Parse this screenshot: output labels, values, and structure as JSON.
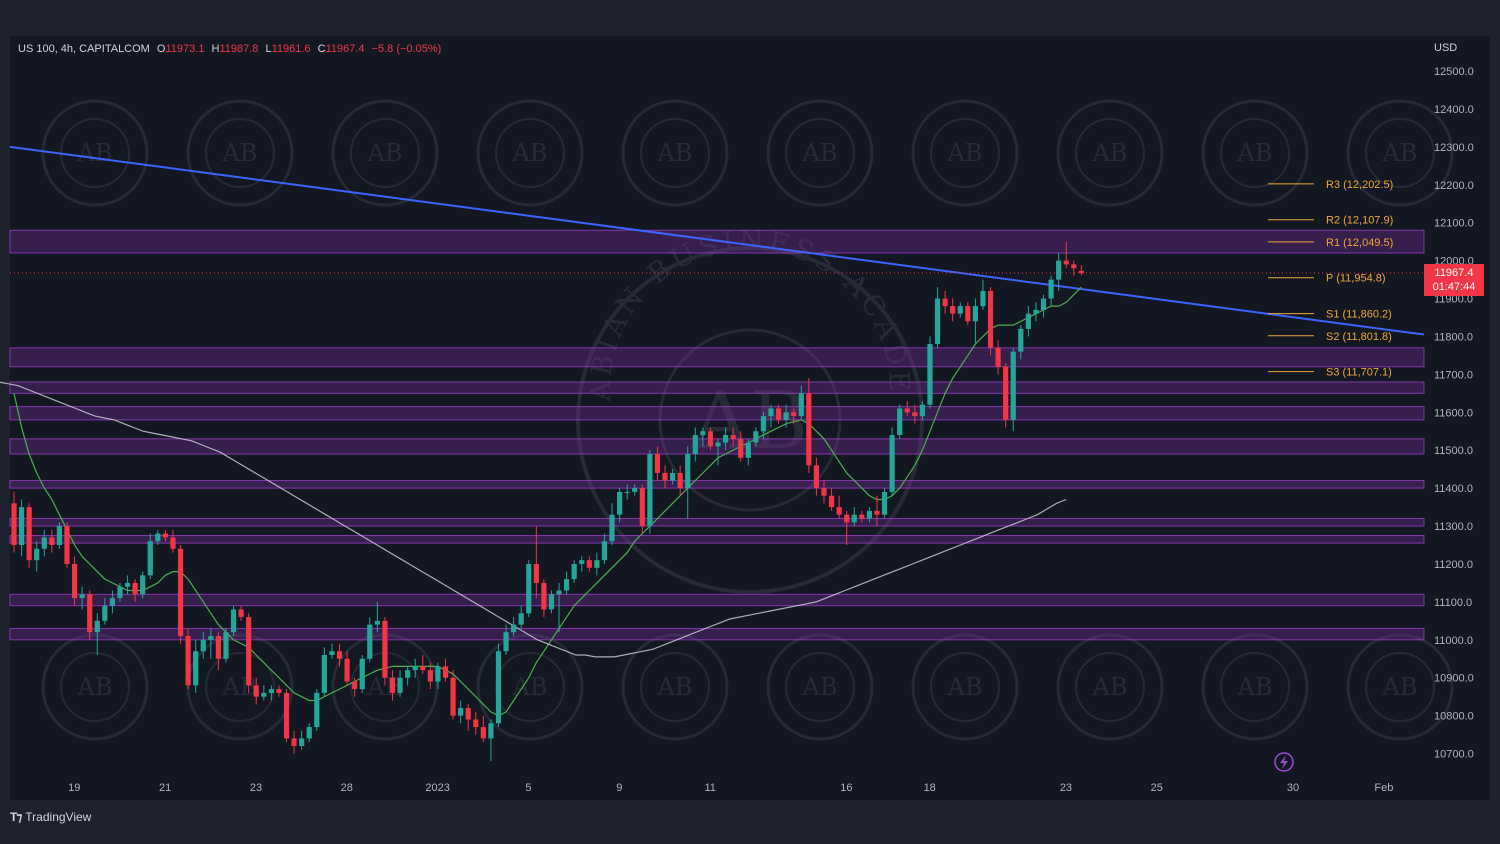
{
  "header": {
    "symbol": "US 100, 4h, CAPITALCOM",
    "open_label": "O",
    "open": "11973.1",
    "high_label": "H",
    "high": "11987.8",
    "low_label": "L",
    "low": "11961.6",
    "close_label": "C",
    "close": "11967.4",
    "change": "−5.8 (−0.05%)"
  },
  "currency": "USD",
  "last_price": {
    "value": "11967.4",
    "countdown": "01:47:44"
  },
  "footer": {
    "brand": "TradingView"
  },
  "colors": {
    "bull": "#26a69a",
    "bear": "#f23645",
    "pivot": "#f0a73a",
    "trendline": "#3c64ff",
    "zone": "#7b2d9e",
    "ma_fast": "#4caf50",
    "ma_slow": "#c8c8d0"
  },
  "chart_data": {
    "type": "candlestick",
    "ylim": [
      10650,
      12550
    ],
    "y_ticks": [
      10700,
      10800,
      10900,
      11000,
      11100,
      11200,
      11300,
      11400,
      11500,
      11600,
      11700,
      11800,
      11900,
      12000,
      12100,
      12200,
      12300,
      12400,
      12500
    ],
    "y_tick_labels": [
      "10700.0",
      "10800.0",
      "10900.0",
      "11000.0",
      "11100.0",
      "11200.0",
      "11300.0",
      "11400.0",
      "11500.0",
      "11600.0",
      "11700.0",
      "11800.0",
      "11900.0",
      "12000.0",
      "12100.0",
      "12200.0",
      "12300.0",
      "12400.0",
      "12500.0"
    ],
    "x_ticks": [
      {
        "label": "19",
        "i": 4
      },
      {
        "label": "21",
        "i": 16
      },
      {
        "label": "23",
        "i": 28
      },
      {
        "label": "28",
        "i": 40
      },
      {
        "label": "2023",
        "i": 52
      },
      {
        "label": "5",
        "i": 64
      },
      {
        "label": "9",
        "i": 76
      },
      {
        "label": "11",
        "i": 88
      },
      {
        "label": "16",
        "i": 106
      },
      {
        "label": "18",
        "i": 117
      },
      {
        "label": "23",
        "i": 135
      },
      {
        "label": "25",
        "i": 147
      },
      {
        "label": "30",
        "i": 165
      },
      {
        "label": "Feb",
        "i": 177
      }
    ],
    "candles": [
      [
        11360,
        11390,
        11230,
        11250
      ],
      [
        11250,
        11370,
        11220,
        11350
      ],
      [
        11350,
        11360,
        11190,
        11210
      ],
      [
        11210,
        11260,
        11180,
        11240
      ],
      [
        11240,
        11290,
        11220,
        11270
      ],
      [
        11270,
        11290,
        11230,
        11250
      ],
      [
        11250,
        11310,
        11240,
        11300
      ],
      [
        11300,
        11310,
        11190,
        11200
      ],
      [
        11200,
        11220,
        11090,
        11110
      ],
      [
        11110,
        11140,
        11080,
        11120
      ],
      [
        11120,
        11130,
        11000,
        11020
      ],
      [
        11020,
        11070,
        10960,
        11050
      ],
      [
        11050,
        11110,
        11040,
        11090
      ],
      [
        11090,
        11130,
        11070,
        11110
      ],
      [
        11110,
        11150,
        11100,
        11140
      ],
      [
        11140,
        11170,
        11120,
        11150
      ],
      [
        11150,
        11160,
        11100,
        11120
      ],
      [
        11120,
        11180,
        11110,
        11170
      ],
      [
        11170,
        11280,
        11160,
        11260
      ],
      [
        11260,
        11290,
        11250,
        11280
      ],
      [
        11280,
        11290,
        11260,
        11270
      ],
      [
        11270,
        11290,
        11230,
        11240
      ],
      [
        11240,
        11250,
        10990,
        11010
      ],
      [
        11010,
        11030,
        10870,
        10880
      ],
      [
        10880,
        11000,
        10860,
        10970
      ],
      [
        10970,
        11020,
        10950,
        11000
      ],
      [
        11000,
        11030,
        10950,
        11010
      ],
      [
        11010,
        11020,
        10920,
        10950
      ],
      [
        10950,
        11030,
        10940,
        11020
      ],
      [
        11020,
        11090,
        11010,
        11080
      ],
      [
        11080,
        11090,
        11050,
        11060
      ],
      [
        11060,
        11070,
        10860,
        10880
      ],
      [
        10880,
        10900,
        10830,
        10850
      ],
      [
        10850,
        10880,
        10840,
        10860
      ],
      [
        10860,
        10880,
        10840,
        10870
      ],
      [
        10870,
        10880,
        10850,
        10860
      ],
      [
        10860,
        10870,
        10730,
        10740
      ],
      [
        10740,
        10760,
        10700,
        10720
      ],
      [
        10720,
        10760,
        10710,
        10740
      ],
      [
        10740,
        10780,
        10730,
        10770
      ],
      [
        10770,
        10870,
        10760,
        10860
      ],
      [
        10860,
        10980,
        10850,
        10960
      ],
      [
        10960,
        10990,
        10950,
        10970
      ],
      [
        10970,
        10990,
        10930,
        10950
      ],
      [
        10950,
        10970,
        10880,
        10890
      ],
      [
        10890,
        10900,
        10850,
        10870
      ],
      [
        10870,
        10960,
        10860,
        10950
      ],
      [
        10950,
        11060,
        10940,
        11040
      ],
      [
        11040,
        11100,
        11020,
        11050
      ],
      [
        11050,
        11060,
        10880,
        10900
      ],
      [
        10900,
        10920,
        10840,
        10860
      ],
      [
        10860,
        10920,
        10850,
        10900
      ],
      [
        10900,
        10930,
        10880,
        10920
      ],
      [
        10920,
        10950,
        10900,
        10930
      ],
      [
        10930,
        10960,
        10910,
        10920
      ],
      [
        10920,
        10940,
        10870,
        10890
      ],
      [
        10890,
        10940,
        10870,
        10930
      ],
      [
        10930,
        10950,
        10890,
        10900
      ],
      [
        10900,
        10920,
        10790,
        10800
      ],
      [
        10800,
        10840,
        10780,
        10820
      ],
      [
        10820,
        10830,
        10760,
        10790
      ],
      [
        10790,
        10810,
        10750,
        10770
      ],
      [
        10770,
        10800,
        10730,
        10740
      ],
      [
        10740,
        10790,
        10680,
        10780
      ],
      [
        10780,
        10990,
        10770,
        10970
      ],
      [
        10970,
        11040,
        10960,
        11020
      ],
      [
        11020,
        11060,
        11010,
        11040
      ],
      [
        11040,
        11090,
        11030,
        11070
      ],
      [
        11070,
        11210,
        11060,
        11200
      ],
      [
        11200,
        11300,
        11110,
        11150
      ],
      [
        11150,
        11160,
        11060,
        11080
      ],
      [
        11080,
        11130,
        11070,
        11120
      ],
      [
        11120,
        11150,
        11020,
        11130
      ],
      [
        11130,
        11180,
        11120,
        11160
      ],
      [
        11160,
        11210,
        11150,
        11200
      ],
      [
        11200,
        11220,
        11180,
        11210
      ],
      [
        11210,
        11220,
        11180,
        11190
      ],
      [
        11190,
        11230,
        11170,
        11210
      ],
      [
        11210,
        11280,
        11200,
        11260
      ],
      [
        11260,
        11360,
        11250,
        11330
      ],
      [
        11330,
        11400,
        11310,
        11390
      ],
      [
        11390,
        11410,
        11370,
        11390
      ],
      [
        11390,
        11410,
        11380,
        11400
      ],
      [
        11400,
        11410,
        11280,
        11300
      ],
      [
        11300,
        11500,
        11280,
        11490
      ],
      [
        11490,
        11510,
        11420,
        11440
      ],
      [
        11440,
        11460,
        11400,
        11420
      ],
      [
        11420,
        11450,
        11410,
        11440
      ],
      [
        11440,
        11460,
        11380,
        11400
      ],
      [
        11400,
        11510,
        11320,
        11490
      ],
      [
        11490,
        11560,
        11470,
        11540
      ],
      [
        11540,
        11560,
        11510,
        11550
      ],
      [
        11550,
        11560,
        11500,
        11510
      ],
      [
        11510,
        11530,
        11460,
        11520
      ],
      [
        11520,
        11560,
        11500,
        11540
      ],
      [
        11540,
        11560,
        11510,
        11530
      ],
      [
        11530,
        11550,
        11470,
        11480
      ],
      [
        11480,
        11530,
        11460,
        11520
      ],
      [
        11520,
        11560,
        11510,
        11550
      ],
      [
        11550,
        11600,
        11530,
        11590
      ],
      [
        11590,
        11620,
        11560,
        11610
      ],
      [
        11610,
        11620,
        11570,
        11580
      ],
      [
        11580,
        11620,
        11560,
        11600
      ],
      [
        11600,
        11610,
        11570,
        11590
      ],
      [
        11590,
        11670,
        11580,
        11650
      ],
      [
        11650,
        11690,
        11440,
        11460
      ],
      [
        11460,
        11480,
        11380,
        11400
      ],
      [
        11400,
        11420,
        11360,
        11380
      ],
      [
        11380,
        11400,
        11340,
        11350
      ],
      [
        11350,
        11380,
        11320,
        11330
      ],
      [
        11330,
        11340,
        11250,
        11310
      ],
      [
        11310,
        11350,
        11300,
        11330
      ],
      [
        11330,
        11340,
        11310,
        11320
      ],
      [
        11320,
        11350,
        11310,
        11340
      ],
      [
        11340,
        11380,
        11300,
        11330
      ],
      [
        11330,
        11400,
        11320,
        11390
      ],
      [
        11390,
        11560,
        11380,
        11540
      ],
      [
        11540,
        11620,
        11530,
        11610
      ],
      [
        11610,
        11630,
        11590,
        11600
      ],
      [
        11600,
        11620,
        11570,
        11590
      ],
      [
        11590,
        11630,
        11580,
        11620
      ],
      [
        11620,
        11800,
        11610,
        11780
      ],
      [
        11780,
        11930,
        11770,
        11900
      ],
      [
        11900,
        11920,
        11860,
        11880
      ],
      [
        11880,
        11900,
        11840,
        11860
      ],
      [
        11860,
        11890,
        11850,
        11880
      ],
      [
        11880,
        11890,
        11830,
        11840
      ],
      [
        11840,
        11900,
        11780,
        11880
      ],
      [
        11880,
        11950,
        11870,
        11920
      ],
      [
        11920,
        11930,
        11750,
        11770
      ],
      [
        11770,
        11790,
        11700,
        11720
      ],
      [
        11720,
        11730,
        11560,
        11580
      ],
      [
        11580,
        11770,
        11550,
        11760
      ],
      [
        11760,
        11830,
        11740,
        11820
      ],
      [
        11820,
        11880,
        11800,
        11860
      ],
      [
        11860,
        11890,
        11840,
        11870
      ],
      [
        11870,
        11910,
        11850,
        11900
      ],
      [
        11900,
        11960,
        11880,
        11950
      ],
      [
        11950,
        12020,
        11920,
        12000
      ],
      [
        12000,
        12050,
        11980,
        11990
      ],
      [
        11990,
        12000,
        11960,
        11980
      ],
      [
        11973.1,
        11987.8,
        11961.6,
        11967.4
      ]
    ],
    "ma_fast": [
      11650,
      11560,
      11490,
      11440,
      11400,
      11370,
      11330,
      11290,
      11250,
      11220,
      11200,
      11180,
      11160,
      11150,
      11140,
      11130,
      11130,
      11130,
      11140,
      11150,
      11170,
      11180,
      11180,
      11160,
      11130,
      11100,
      11070,
      11040,
      11020,
      11000,
      10990,
      10980,
      10960,
      10940,
      10920,
      10900,
      10880,
      10860,
      10850,
      10840,
      10840,
      10850,
      10860,
      10870,
      10880,
      10890,
      10900,
      10910,
      10920,
      10925,
      10930,
      10930,
      10930,
      10930,
      10930,
      10930,
      10930,
      10920,
      10910,
      10890,
      10870,
      10850,
      10830,
      10810,
      10800,
      10810,
      10840,
      10870,
      10900,
      10940,
      10970,
      11000,
      11030,
      11060,
      11090,
      11110,
      11130,
      11150,
      11170,
      11190,
      11210,
      11230,
      11260,
      11280,
      11300,
      11320,
      11340,
      11360,
      11380,
      11400,
      11420,
      11440,
      11460,
      11480,
      11490,
      11500,
      11510,
      11520,
      11530,
      11540,
      11550,
      11560,
      11570,
      11575,
      11580,
      11570,
      11550,
      11530,
      11500,
      11470,
      11440,
      11420,
      11400,
      11380,
      11370,
      11370,
      11380,
      11400,
      11430,
      11460,
      11500,
      11550,
      11600,
      11650,
      11690,
      11720,
      11750,
      11780,
      11800,
      11820,
      11830,
      11830,
      11830,
      11840,
      11850,
      11860,
      11870,
      11880,
      11880,
      11890,
      11910,
      11930
    ],
    "ma_slow": [
      11680,
      11675,
      11670,
      11660,
      11650,
      11640,
      11630,
      11620,
      11610,
      11600,
      11590,
      11585,
      11580,
      11570,
      11560,
      11550,
      11545,
      11540,
      11535,
      11530,
      11525,
      11515,
      11505,
      11495,
      11480,
      11465,
      11450,
      11435,
      11420,
      11405,
      11390,
      11375,
      11360,
      11345,
      11330,
      11315,
      11300,
      11285,
      11270,
      11255,
      11240,
      11225,
      11210,
      11195,
      11180,
      11165,
      11150,
      11135,
      11120,
      11105,
      11090,
      11075,
      11060,
      11045,
      11030,
      11015,
      11000,
      10990,
      10980,
      10970,
      10960,
      10960,
      10955,
      10955,
      10955,
      10960,
      10965,
      10970,
      10975,
      10985,
      10995,
      11005,
      11015,
      11025,
      11035,
      11045,
      11055,
      11060,
      11065,
      11070,
      11075,
      11080,
      11085,
      11090,
      11095,
      11100,
      11110,
      11120,
      11130,
      11140,
      11150,
      11160,
      11170,
      11180,
      11190,
      11200,
      11210,
      11220,
      11230,
      11240,
      11250,
      11260,
      11270,
      11280,
      11290,
      11300,
      11310,
      11320,
      11330,
      11345,
      11360,
      11370
    ],
    "trendline": {
      "start": 12300,
      "end": 11805
    },
    "zones": [
      [
        12020,
        12080
      ],
      [
        11770,
        11720
      ],
      [
        11680,
        11650
      ],
      [
        11615,
        11580
      ],
      [
        11530,
        11490
      ],
      [
        11420,
        11400
      ],
      [
        11320,
        11300
      ],
      [
        11275,
        11255
      ],
      [
        11120,
        11090
      ],
      [
        11030,
        11000
      ]
    ],
    "pivots": [
      {
        "label": "R3 (12,202.5)",
        "value": 12202.5
      },
      {
        "label": "R2 (12,107.9)",
        "value": 12107.9
      },
      {
        "label": "R1 (12,049.5)",
        "value": 12049.5
      },
      {
        "label": "P (11,954.8)",
        "value": 11954.8
      },
      {
        "label": "S1 (11,860.2)",
        "value": 11860.2
      },
      {
        "label": "S2 (11,801.8)",
        "value": 11801.8
      },
      {
        "label": "S3 (11,707.1)",
        "value": 11707.1
      }
    ],
    "last_price": 11967.4,
    "grid": false,
    "watermark": {
      "label": "AB",
      "circle_text": "ARABIAN BUSINESS ACADEMY"
    }
  }
}
